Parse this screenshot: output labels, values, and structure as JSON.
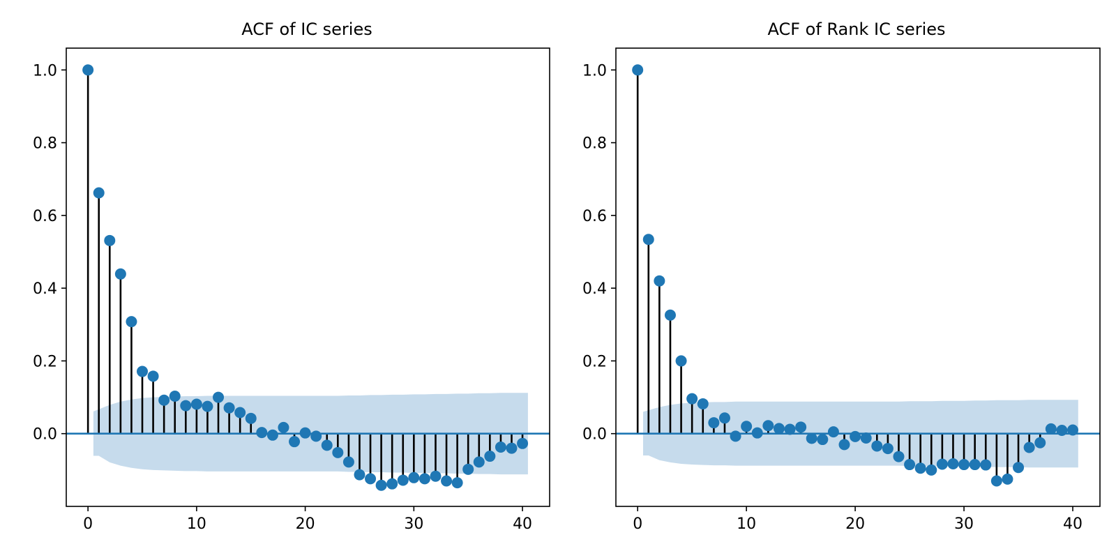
{
  "chart_data": [
    {
      "type": "stem",
      "title": "ACF of IC series",
      "xlabel": "",
      "ylabel": "",
      "xlim": [
        -2,
        42.5
      ],
      "ylim": [
        -0.2,
        1.06
      ],
      "xticks": [
        0,
        10,
        20,
        30,
        40
      ],
      "yticks": [
        0.0,
        0.2,
        0.4,
        0.6,
        0.8,
        1.0
      ],
      "xtick_labels": [
        "0",
        "10",
        "20",
        "30",
        "40"
      ],
      "ytick_labels": [
        "0.0",
        "0.2",
        "0.4",
        "0.6",
        "0.8",
        "1.0"
      ],
      "grid": false,
      "colors": {
        "marker": "#1f77b4",
        "stem": "#000000",
        "confidence_band": "#c6dbec",
        "zero_line": "#1f77b4"
      },
      "lags": [
        0,
        1,
        2,
        3,
        4,
        5,
        6,
        7,
        8,
        9,
        10,
        11,
        12,
        13,
        14,
        15,
        16,
        17,
        18,
        19,
        20,
        21,
        22,
        23,
        24,
        25,
        26,
        27,
        28,
        29,
        30,
        31,
        32,
        33,
        34,
        35,
        36,
        37,
        38,
        39,
        40
      ],
      "values": [
        1.0,
        0.662,
        0.531,
        0.439,
        0.308,
        0.171,
        0.158,
        0.092,
        0.103,
        0.077,
        0.081,
        0.075,
        0.1,
        0.071,
        0.058,
        0.042,
        0.003,
        -0.004,
        0.017,
        -0.022,
        0.002,
        -0.007,
        -0.032,
        -0.052,
        -0.078,
        -0.113,
        -0.124,
        -0.142,
        -0.138,
        -0.128,
        -0.121,
        -0.124,
        -0.117,
        -0.13,
        -0.135,
        -0.098,
        -0.078,
        -0.062,
        -0.037,
        -0.04,
        -0.027
      ],
      "confidence_upper": [
        0.0,
        0.061,
        0.079,
        0.088,
        0.094,
        0.098,
        0.1,
        0.101,
        0.102,
        0.103,
        0.103,
        0.104,
        0.104,
        0.104,
        0.104,
        0.104,
        0.104,
        0.104,
        0.104,
        0.104,
        0.104,
        0.104,
        0.104,
        0.104,
        0.105,
        0.105,
        0.106,
        0.106,
        0.107,
        0.107,
        0.108,
        0.108,
        0.109,
        0.109,
        0.11,
        0.11,
        0.111,
        0.111,
        0.112,
        0.112,
        0.112
      ]
    },
    {
      "type": "stem",
      "title": "ACF of Rank IC series",
      "xlabel": "",
      "ylabel": "",
      "xlim": [
        -2,
        42.5
      ],
      "ylim": [
        -0.2,
        1.06
      ],
      "xticks": [
        0,
        10,
        20,
        30,
        40
      ],
      "yticks": [
        0.0,
        0.2,
        0.4,
        0.6,
        0.8,
        1.0
      ],
      "xtick_labels": [
        "0",
        "10",
        "20",
        "30",
        "40"
      ],
      "ytick_labels": [
        "0.0",
        "0.2",
        "0.4",
        "0.6",
        "0.8",
        "1.0"
      ],
      "grid": false,
      "colors": {
        "marker": "#1f77b4",
        "stem": "#000000",
        "confidence_band": "#c6dbec",
        "zero_line": "#1f77b4"
      },
      "lags": [
        0,
        1,
        2,
        3,
        4,
        5,
        6,
        7,
        8,
        9,
        10,
        11,
        12,
        13,
        14,
        15,
        16,
        17,
        18,
        19,
        20,
        21,
        22,
        23,
        24,
        25,
        26,
        27,
        28,
        29,
        30,
        31,
        32,
        33,
        34,
        35,
        36,
        37,
        38,
        39,
        40
      ],
      "values": [
        1.0,
        0.534,
        0.42,
        0.326,
        0.2,
        0.096,
        0.082,
        0.03,
        0.043,
        -0.007,
        0.02,
        0.002,
        0.022,
        0.014,
        0.012,
        0.018,
        -0.013,
        -0.016,
        0.005,
        -0.03,
        -0.008,
        -0.012,
        -0.034,
        -0.041,
        -0.063,
        -0.085,
        -0.095,
        -0.1,
        -0.084,
        -0.083,
        -0.085,
        -0.085,
        -0.086,
        -0.13,
        -0.125,
        -0.093,
        -0.038,
        -0.025,
        0.013,
        0.009,
        0.01
      ],
      "confidence_upper": [
        0.0,
        0.06,
        0.073,
        0.079,
        0.083,
        0.085,
        0.086,
        0.087,
        0.087,
        0.088,
        0.088,
        0.088,
        0.088,
        0.088,
        0.088,
        0.088,
        0.088,
        0.088,
        0.088,
        0.088,
        0.088,
        0.088,
        0.088,
        0.088,
        0.088,
        0.089,
        0.089,
        0.089,
        0.09,
        0.09,
        0.09,
        0.091,
        0.091,
        0.092,
        0.092,
        0.092,
        0.093,
        0.093,
        0.093,
        0.093,
        0.093
      ]
    }
  ]
}
